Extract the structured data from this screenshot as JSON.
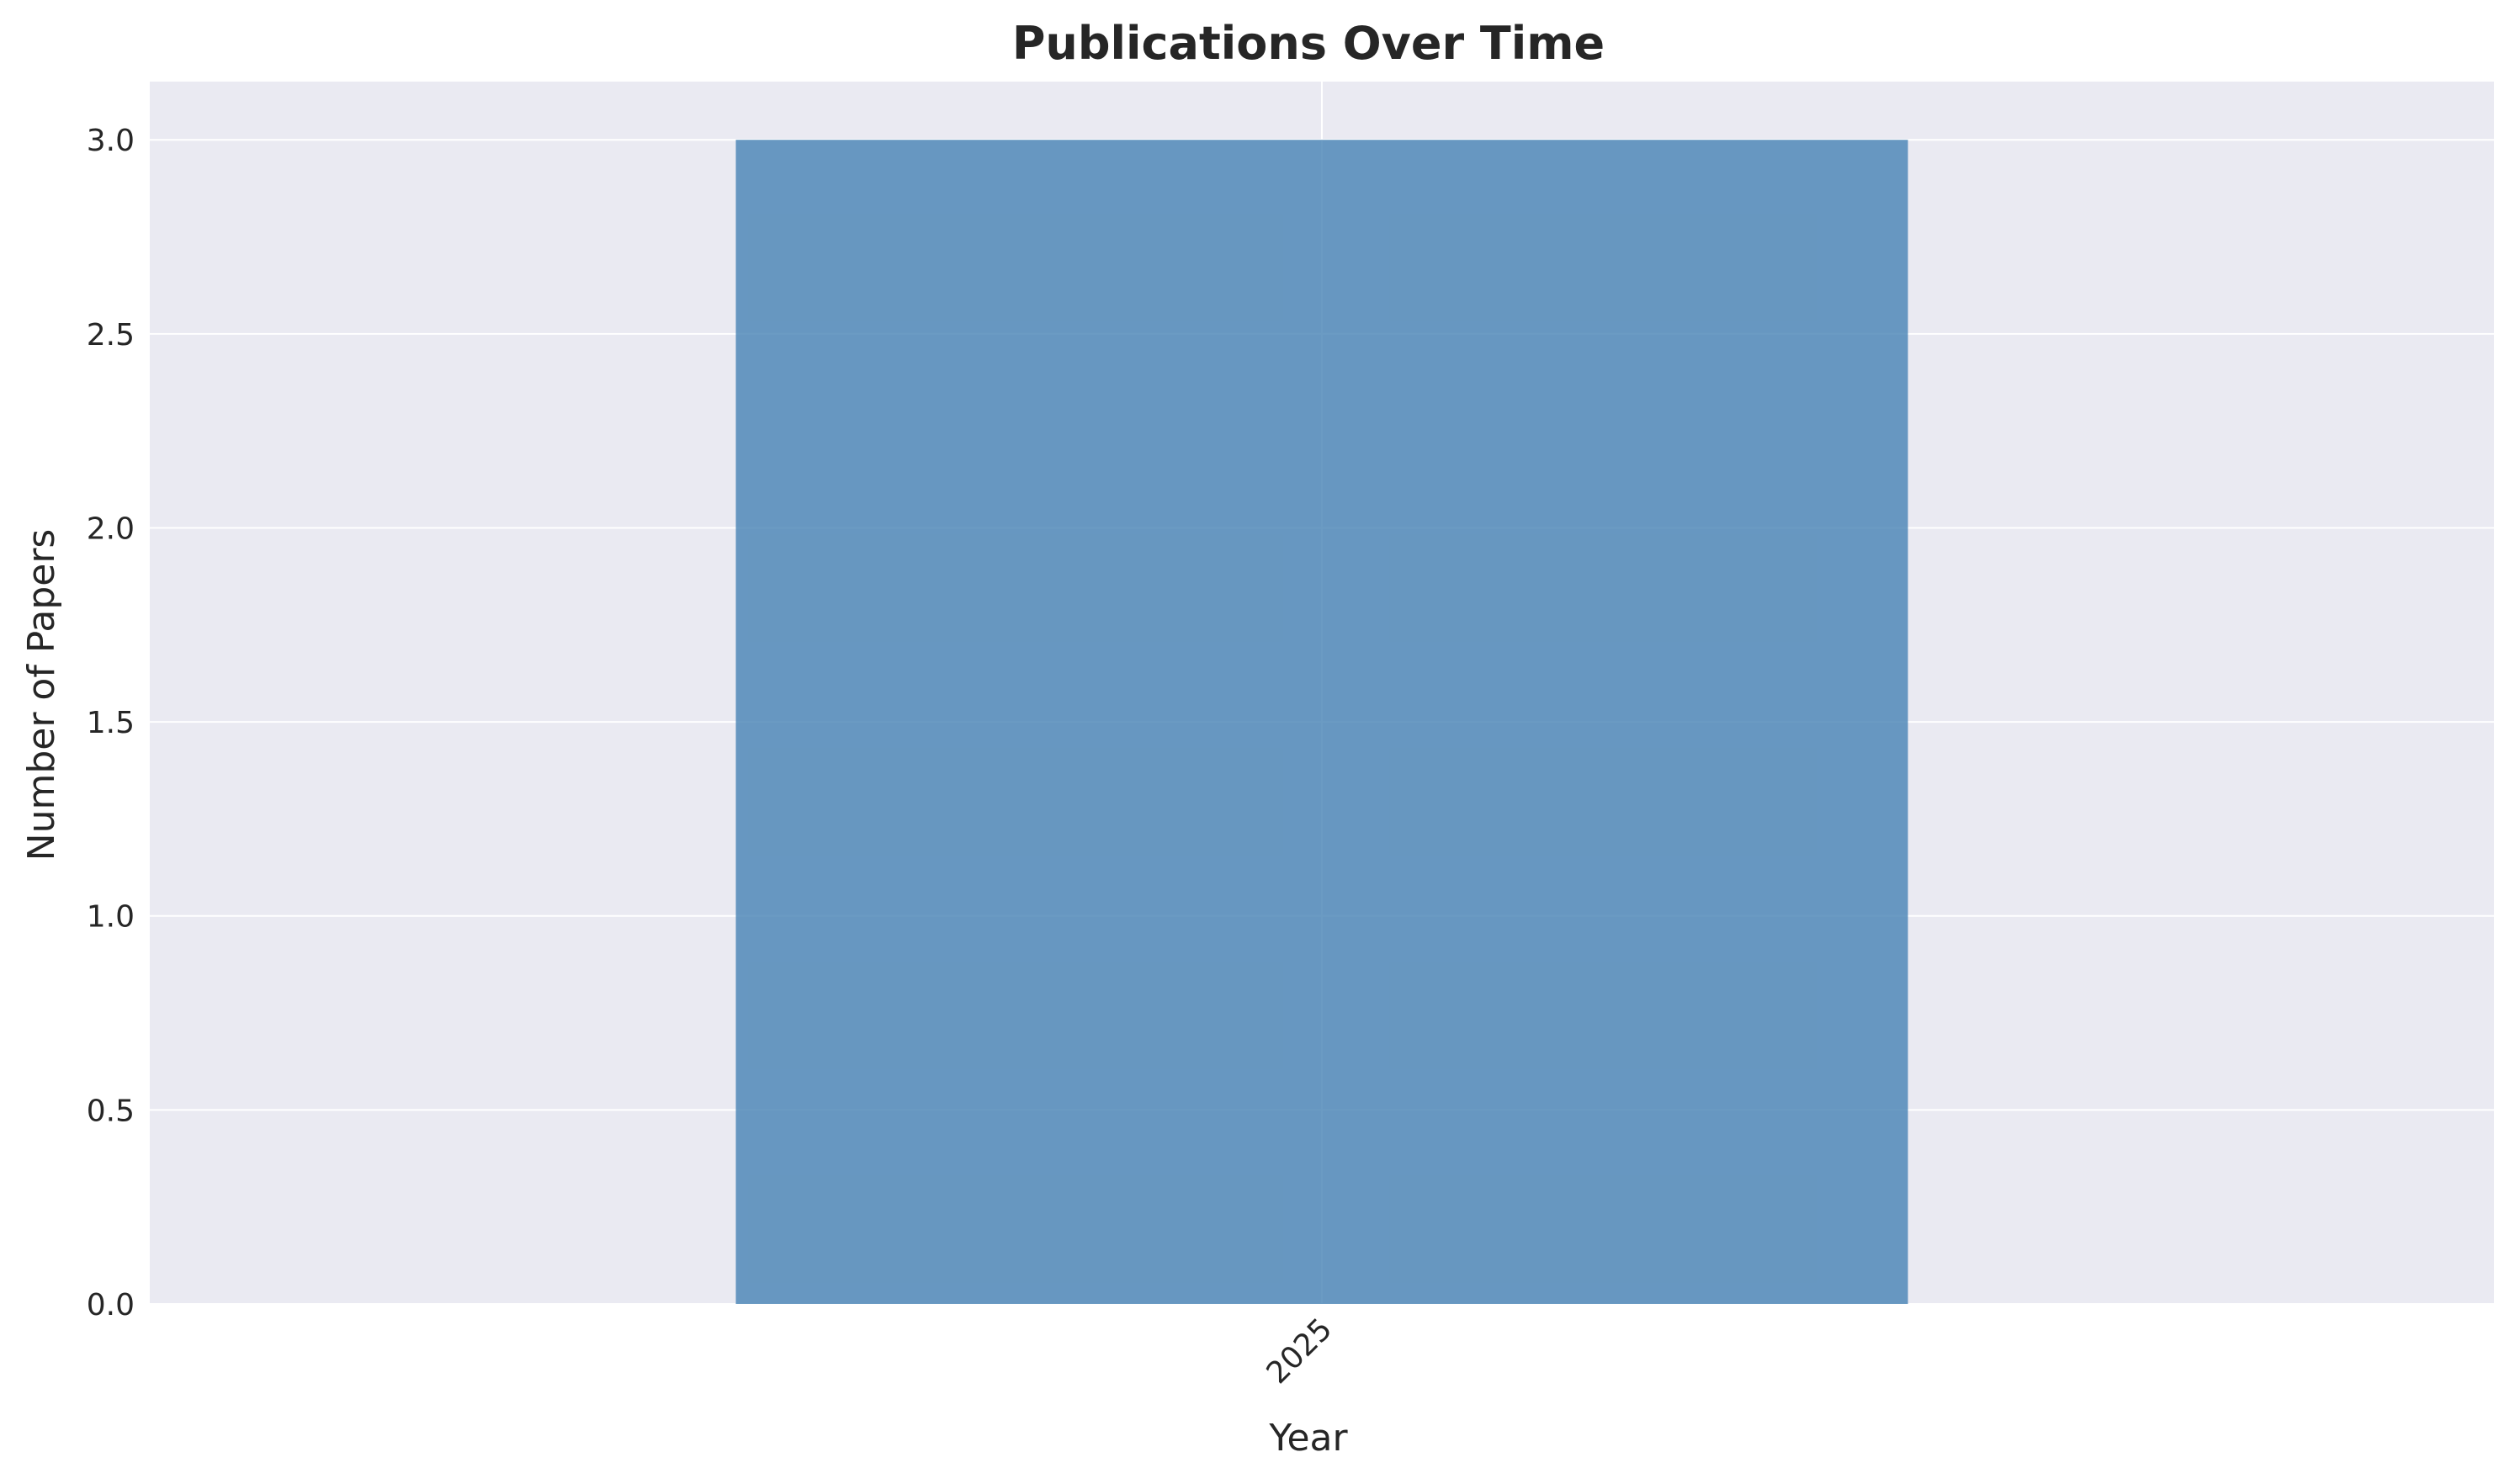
{
  "chart_data": {
    "type": "bar",
    "title": "Publications Over Time",
    "xlabel": "Year",
    "ylabel": "Number of Papers",
    "categories": [
      "2025"
    ],
    "values": [
      3
    ],
    "ylim": [
      0,
      3.15
    ],
    "yticks": [
      "0.0",
      "0.5",
      "1.0",
      "1.5",
      "2.0",
      "2.5",
      "3.0"
    ],
    "xtick_rotation": 45,
    "grid": true,
    "legend": "none",
    "colors": {
      "bar": "#4682b4",
      "plot_background": "#eaeaf2",
      "grid": "#ffffff",
      "text": "#262626"
    }
  }
}
